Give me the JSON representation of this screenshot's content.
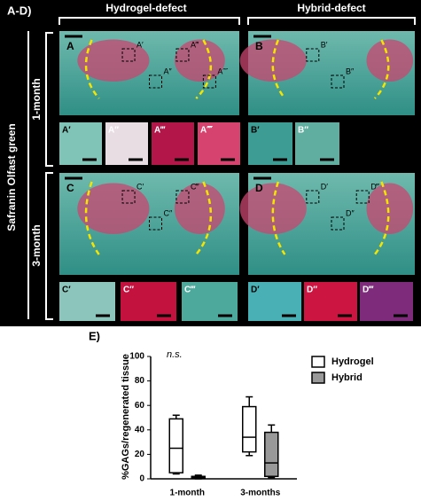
{
  "figure": {
    "label": "A-D)",
    "columns": [
      "Hydrogel-defect",
      "Hybrid-defect"
    ],
    "stain": "Safranin Olfast green",
    "rows": [
      "1-month",
      "3-month"
    ],
    "panels": [
      "A",
      "B",
      "C",
      "D"
    ],
    "insets": [
      [
        "A′",
        "A″",
        "A‴",
        "A⁗"
      ],
      [
        "B′",
        "B″"
      ],
      [
        "C′",
        "C″",
        "C‴"
      ],
      [
        "D′",
        "D″",
        "D‴"
      ]
    ]
  },
  "chart_data": {
    "type": "box",
    "panel_label": "E)",
    "annotation": "n.s.",
    "ylabel": "%GAGs/regenerated tissue",
    "categories": [
      "1-month",
      "3-months"
    ],
    "series": [
      {
        "name": "Hydrogel",
        "color": "#ffffff",
        "values": [
          {
            "min": 4,
            "q1": 5,
            "median": 25,
            "q3": 49,
            "max": 52
          },
          {
            "min": 19,
            "q1": 22,
            "median": 34,
            "q3": 59,
            "max": 67
          }
        ]
      },
      {
        "name": "Hybrid",
        "color": "#999999",
        "values": [
          {
            "min": 0,
            "q1": 0.5,
            "median": 1,
            "q3": 2,
            "max": 3
          },
          {
            "min": 1,
            "q1": 2,
            "median": 13,
            "q3": 38,
            "max": 44
          }
        ]
      }
    ],
    "ylim": [
      0,
      100
    ],
    "yticks": [
      0,
      20,
      40,
      60,
      80,
      100
    ]
  }
}
